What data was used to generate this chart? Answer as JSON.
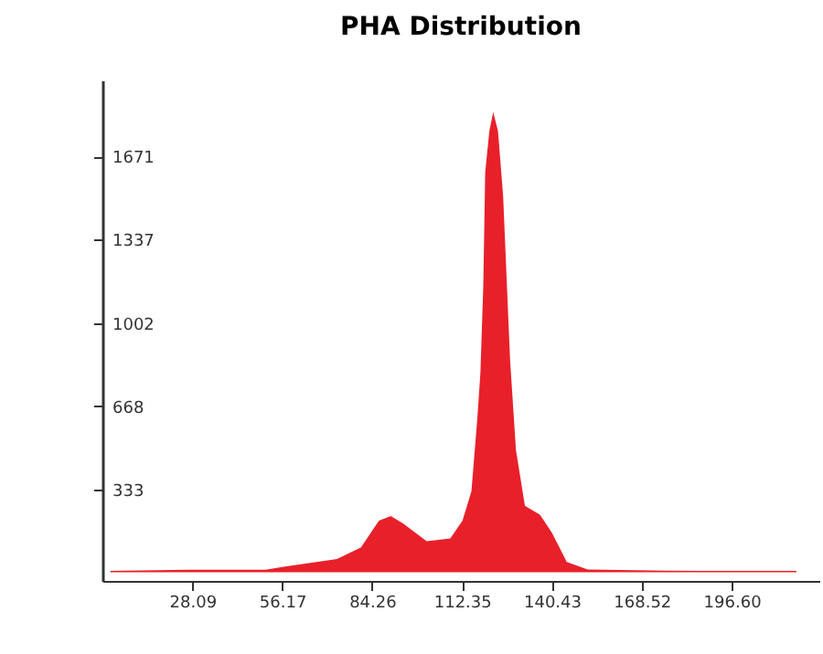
{
  "chart_data": {
    "type": "area",
    "title": "PHA Distribution",
    "x": [
      2.5,
      26.8,
      51,
      56.6,
      73.3,
      80.8,
      86.4,
      90.1,
      93.9,
      101.3,
      108.7,
      112.5,
      115.3,
      117.1,
      118.1,
      119,
      119.6,
      120.9,
      122.1,
      123.6,
      125.2,
      127,
      127.4,
      129.2,
      132,
      136.7,
      140.4,
      145.1,
      151.6,
      175.8,
      216.8
    ],
    "series": [
      {
        "color": "#e8202a",
        "values": [
          5,
          10,
          10,
          22,
          53,
          100,
          207,
          226,
          196,
          125,
          136,
          207,
          326,
          611,
          800,
          1150,
          1607,
          1773,
          1849,
          1773,
          1512,
          967,
          848,
          492,
          267,
          231,
          160,
          41,
          11,
          6,
          5
        ]
      }
    ],
    "xlim": [
      0,
      224
    ],
    "ylim": [
      -35,
      1977
    ],
    "xticks": [
      28.09,
      56.17,
      84.26,
      112.35,
      140.43,
      {
        "value": 196.6,
        "label": "196.60"
      },
      168.52
    ],
    "yticks": [
      333,
      668,
      1002,
      1337,
      1671
    ]
  }
}
